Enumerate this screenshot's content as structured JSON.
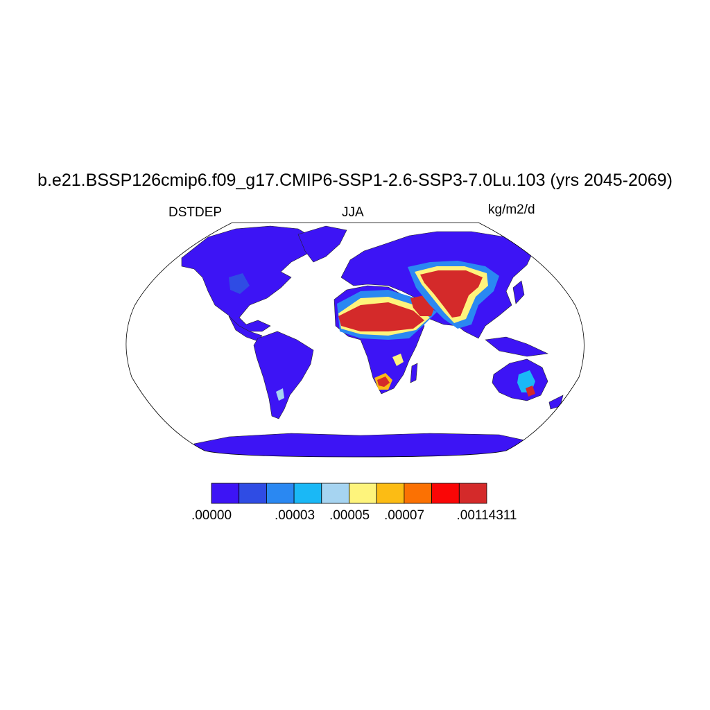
{
  "figure": {
    "title": "b.e21.BSSP126cmip6.f09_g17.CMIP6-SSP1-2.6-SSP3-7.0Lu.103 (yrs 2045-2069)",
    "left_label": "DSTDEP",
    "center_label": "JJA",
    "right_label": "kg/m2/d"
  },
  "colorbar": {
    "colors": [
      "#3d14f5",
      "#2f4ce4",
      "#2a88f2",
      "#1ab8f6",
      "#a6d4f1",
      "#fef47c",
      "#fcbc14",
      "#fb7103",
      "#fa0606",
      "#d42a2a"
    ],
    "tick_labels": [
      ".00000",
      ".00003",
      ".00005",
      ".00007",
      ".00114311"
    ]
  },
  "map": {
    "projection": "robinson",
    "land_base_color": "#3d14f5",
    "ocean_color": "#ffffff"
  }
}
